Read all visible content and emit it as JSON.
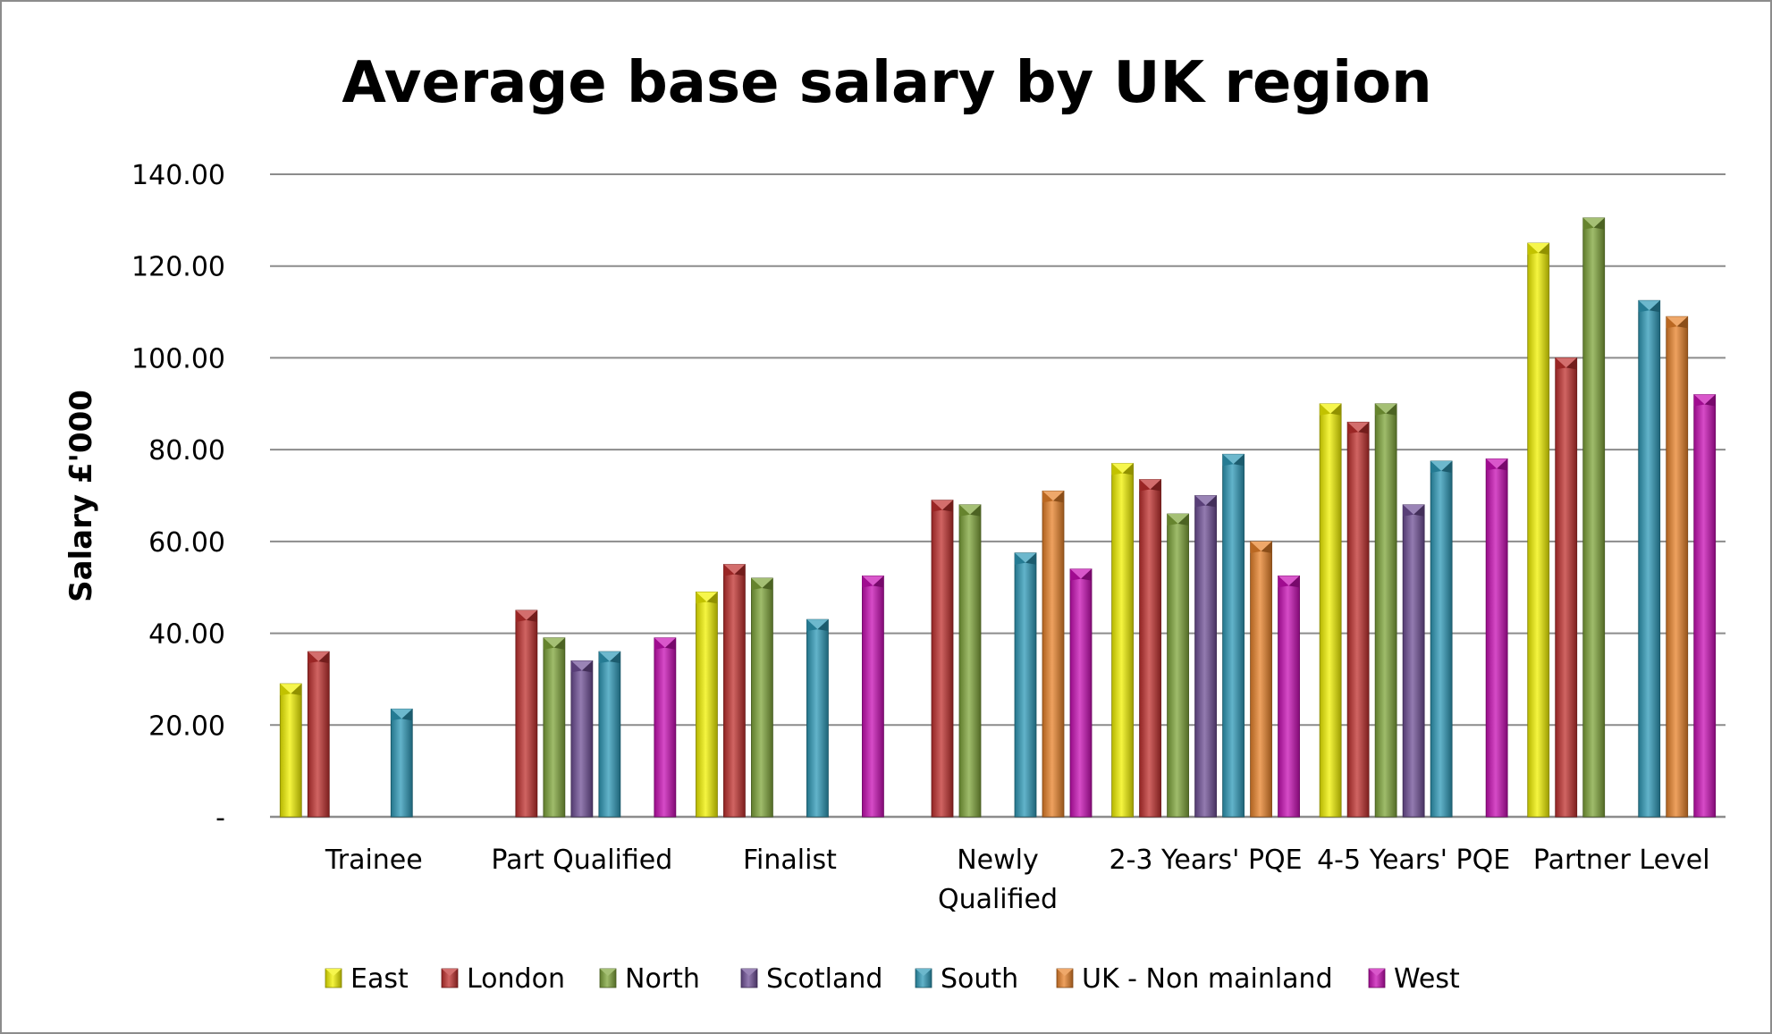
{
  "chart_data": {
    "type": "bar",
    "title": "Average base salary by UK region",
    "ylabel": "Salary £'000",
    "xlabel": "",
    "ylim": [
      0,
      140
    ],
    "yticks": [
      {
        "value": 0,
        "label": "-"
      },
      {
        "value": 20,
        "label": "20.00"
      },
      {
        "value": 40,
        "label": "40.00"
      },
      {
        "value": 60,
        "label": "60.00"
      },
      {
        "value": 80,
        "label": "80.00"
      },
      {
        "value": 100,
        "label": "100.00"
      },
      {
        "value": 120,
        "label": "120.00"
      },
      {
        "value": 140,
        "label": "140.00"
      }
    ],
    "grid": true,
    "legend_position": "bottom",
    "categories": [
      [
        "Trainee"
      ],
      [
        "Part Qualified"
      ],
      [
        "Finalist"
      ],
      [
        "Newly",
        "Qualified"
      ],
      [
        "2-3 Years' PQE"
      ],
      [
        "4-5 Years' PQE"
      ],
      [
        "Partner Level"
      ]
    ],
    "series": [
      {
        "name": "East",
        "color": "#f2f200",
        "values": [
          29,
          null,
          49,
          null,
          77,
          90,
          125
        ]
      },
      {
        "name": "London",
        "color": "#c0302e",
        "values": [
          36,
          45,
          55,
          69,
          73.5,
          86,
          100
        ]
      },
      {
        "name": "North",
        "color": "#7fa53a",
        "values": [
          null,
          39,
          52,
          68,
          66,
          90,
          130.5
        ]
      },
      {
        "name": "Scotland",
        "color": "#6f4f96",
        "values": [
          null,
          34,
          null,
          null,
          70,
          68,
          null
        ]
      },
      {
        "name": "South",
        "color": "#2e9ab8",
        "values": [
          23.5,
          36,
          43,
          57.5,
          79,
          77.5,
          112.5
        ]
      },
      {
        "name": "UK - Non mainland",
        "color": "#e8822a",
        "values": [
          null,
          null,
          null,
          71,
          60,
          null,
          109
        ]
      },
      {
        "name": "West",
        "color": "#c80fb4",
        "values": [
          null,
          39,
          52.5,
          54,
          52.5,
          78,
          92
        ]
      }
    ]
  }
}
